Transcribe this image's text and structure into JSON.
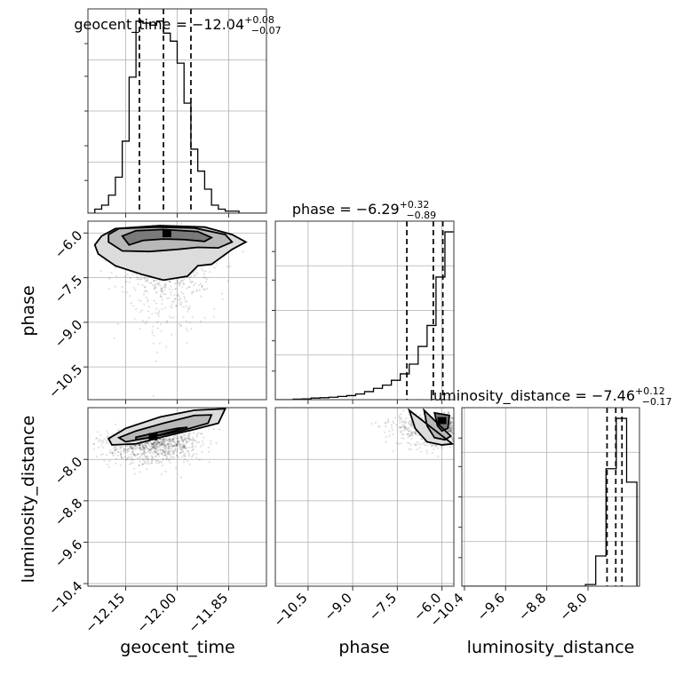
{
  "colors": {
    "frame": "#333333",
    "grid": "#b0b0b0",
    "line": "#000000",
    "density_levels": [
      "#f3f3f3",
      "#dcdcdc",
      "#b8b8b8",
      "#7a7a7a",
      "#3a3a3a",
      "#000000"
    ]
  },
  "chart_data": {
    "type": "corner",
    "grid": true,
    "parameters": [
      {
        "name": "geocent_time",
        "label": "geocent_time",
        "title": {
          "prefix": "geocent_time = ",
          "value": "−12.04",
          "plus": "+0.08",
          "minus": "−0.07"
        },
        "range": [
          -12.26,
          -11.74
        ],
        "ticks": [
          -12.15,
          -12.0,
          -11.85
        ],
        "tick_labels": [
          "−12.15",
          "−12.00",
          "−11.85"
        ],
        "median": -12.04,
        "quantiles": [
          -12.11,
          -12.04,
          -11.96
        ],
        "hist_x": [
          -12.26,
          -12.24,
          -12.22,
          -12.2,
          -12.18,
          -12.16,
          -12.14,
          -12.12,
          -12.1,
          -12.08,
          -12.06,
          -12.04,
          -12.02,
          -12.0,
          -11.98,
          -11.96,
          -11.94,
          -11.92,
          -11.9,
          -11.88,
          -11.86,
          -11.84,
          -11.82,
          -11.8,
          -11.78,
          -11.76,
          -11.74
        ],
        "hist_values": [
          0,
          2,
          4,
          9,
          18,
          36,
          68,
          96,
          95,
          94,
          96,
          90,
          86,
          75,
          55,
          32,
          21,
          12,
          4,
          2,
          1,
          1,
          0,
          0,
          0,
          0
        ]
      },
      {
        "name": "phase",
        "label": "phase",
        "title": {
          "prefix": "phase = ",
          "value": "−6.29",
          "plus": "+0.32",
          "minus": "−0.89"
        },
        "range": [
          -11.6,
          -5.6
        ],
        "ticks": [
          -10.5,
          -9.0,
          -7.5,
          -6.0
        ],
        "tick_labels": [
          "−10.5",
          "−9.0",
          "−7.5",
          "−6.0"
        ],
        "median": -6.29,
        "quantiles": [
          -7.18,
          -6.29,
          -5.97
        ],
        "hist_x": [
          -11.6,
          -11.3,
          -11.0,
          -10.7,
          -10.4,
          -10.1,
          -9.8,
          -9.5,
          -9.2,
          -8.9,
          -8.6,
          -8.3,
          -8.0,
          -7.7,
          -7.4,
          -7.1,
          -6.8,
          -6.5,
          -6.2,
          -5.9,
          -5.6
        ],
        "hist_values": [
          0,
          0,
          0.3,
          0.5,
          1,
          1.2,
          1.5,
          2,
          2.5,
          3.5,
          5,
          7,
          9,
          12,
          16,
          22,
          33,
          46,
          76,
          104
        ]
      },
      {
        "name": "luminosity_distance",
        "label": "luminosity_distance",
        "title": {
          "prefix": "luminosity_distance = ",
          "value": "−7.46",
          "plus": "+0.12",
          "minus": "−0.17"
        },
        "range": [
          -10.45,
          -7.0
        ],
        "ticks": [
          -10.4,
          -9.6,
          -8.8,
          -8.0
        ],
        "tick_labels": [
          "−10.4",
          "−9.6",
          "−8.8",
          "−8.0"
        ],
        "median": -7.46,
        "quantiles": [
          -7.63,
          -7.46,
          -7.34
        ],
        "hist_x": [
          -10.45,
          -10.25,
          -10.05,
          -9.85,
          -9.65,
          -9.45,
          -9.25,
          -9.05,
          -8.85,
          -8.65,
          -8.45,
          -8.25,
          -8.05,
          -7.85,
          -7.65,
          -7.45,
          -7.25,
          -7.05
        ],
        "hist_values": [
          0,
          0,
          0,
          0,
          0,
          0,
          0,
          0,
          0,
          0,
          0,
          0,
          1,
          18,
          70,
          100,
          62,
          0
        ]
      }
    ],
    "pair_panels": [
      {
        "x": "geocent_time",
        "y": "phase",
        "density_peak": [
          -12.03,
          -6.02
        ],
        "contours": [
          [
            [
              -12.14,
              -6.4
            ],
            [
              -12.1,
              -6.25
            ],
            [
              -12.04,
              -6.2
            ],
            [
              -11.98,
              -6.22
            ],
            [
              -11.92,
              -6.28
            ],
            [
              -11.9,
              -6.15
            ],
            [
              -11.94,
              -5.95
            ],
            [
              -12.04,
              -5.88
            ],
            [
              -12.12,
              -5.92
            ],
            [
              -12.16,
              -6.1
            ]
          ],
          [
            [
              -12.2,
              -6.3
            ],
            [
              -12.16,
              -6.6
            ],
            [
              -12.08,
              -6.62
            ],
            [
              -12.0,
              -6.55
            ],
            [
              -11.94,
              -6.48
            ],
            [
              -11.88,
              -6.5
            ],
            [
              -11.84,
              -6.3
            ],
            [
              -11.86,
              -6.05
            ],
            [
              -11.95,
              -5.83
            ],
            [
              -12.06,
              -5.8
            ],
            [
              -12.17,
              -5.85
            ],
            [
              -12.2,
              -6.05
            ]
          ],
          [
            [
              -12.23,
              -6.7
            ],
            [
              -12.18,
              -7.1
            ],
            [
              -12.1,
              -7.4
            ],
            [
              -12.04,
              -7.58
            ],
            [
              -11.97,
              -7.45
            ],
            [
              -11.94,
              -7.1
            ],
            [
              -11.9,
              -7.05
            ],
            [
              -11.87,
              -6.8
            ],
            [
              -11.84,
              -6.55
            ],
            [
              -11.8,
              -6.3
            ],
            [
              -11.84,
              -6.05
            ],
            [
              -11.92,
              -5.8
            ],
            [
              -12.05,
              -5.75
            ],
            [
              -12.18,
              -5.85
            ],
            [
              -12.22,
              -6.1
            ],
            [
              -12.24,
              -6.4
            ]
          ]
        ]
      },
      {
        "x": "geocent_time",
        "y": "luminosity_distance",
        "density_peak": [
          -12.07,
          -7.56
        ],
        "contours": [
          [
            [
              -12.12,
              -7.57
            ],
            [
              -12.06,
              -7.48
            ],
            [
              -12.0,
              -7.4
            ],
            [
              -11.97,
              -7.38
            ],
            [
              -12.01,
              -7.45
            ],
            [
              -12.08,
              -7.58
            ],
            [
              -12.12,
              -7.62
            ]
          ],
          [
            [
              -12.17,
              -7.58
            ],
            [
              -12.12,
              -7.45
            ],
            [
              -12.04,
              -7.3
            ],
            [
              -11.95,
              -7.15
            ],
            [
              -11.9,
              -7.14
            ],
            [
              -11.91,
              -7.3
            ],
            [
              -11.99,
              -7.45
            ],
            [
              -12.08,
              -7.58
            ],
            [
              -12.15,
              -7.66
            ]
          ],
          [
            [
              -12.2,
              -7.6
            ],
            [
              -12.15,
              -7.4
            ],
            [
              -12.05,
              -7.18
            ],
            [
              -11.95,
              -7.05
            ],
            [
              -11.86,
              -7.02
            ],
            [
              -11.88,
              -7.3
            ],
            [
              -11.95,
              -7.42
            ],
            [
              -12.04,
              -7.56
            ],
            [
              -12.12,
              -7.7
            ],
            [
              -12.19,
              -7.72
            ]
          ]
        ]
      },
      {
        "x": "phase",
        "y": "luminosity_distance",
        "density_peak": [
          -6.0,
          -7.25
        ],
        "contours": [
          [
            [
              -6.25,
              -7.1
            ],
            [
              -6.15,
              -7.35
            ],
            [
              -6.0,
              -7.45
            ],
            [
              -5.8,
              -7.4
            ],
            [
              -5.75,
              -7.15
            ]
          ],
          [
            [
              -6.6,
              -7.05
            ],
            [
              -6.5,
              -7.35
            ],
            [
              -6.25,
              -7.58
            ],
            [
              -5.9,
              -7.62
            ],
            [
              -5.7,
              -7.55
            ]
          ],
          [
            [
              -7.1,
              -7.05
            ],
            [
              -6.9,
              -7.4
            ],
            [
              -6.5,
              -7.66
            ],
            [
              -6.0,
              -7.72
            ],
            [
              -5.65,
              -7.7
            ]
          ]
        ]
      }
    ]
  }
}
